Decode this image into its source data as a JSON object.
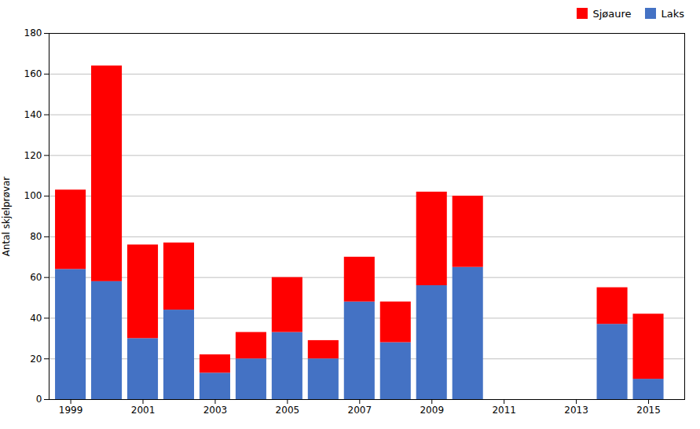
{
  "chart_data": {
    "type": "bar",
    "stacked": true,
    "x": [
      1999,
      2000,
      2001,
      2002,
      2003,
      2004,
      2005,
      2006,
      2007,
      2008,
      2009,
      2010,
      2014,
      2015
    ],
    "series": [
      {
        "name": "Laks",
        "color": "#4472C4",
        "values": [
          64,
          58,
          30,
          44,
          13,
          20,
          33,
          20,
          48,
          28,
          56,
          65,
          37,
          10
        ]
      },
      {
        "name": "Sjøaure",
        "color": "#FF0000",
        "values": [
          39,
          106,
          46,
          33,
          9,
          13,
          27,
          9,
          22,
          20,
          46,
          35,
          18,
          32
        ]
      }
    ],
    "ylabel": "Antal skjelprøvar",
    "xlim": [
      1998.4,
      2016.0
    ],
    "xticks": [
      1999,
      2001,
      2003,
      2005,
      2007,
      2009,
      2011,
      2013,
      2015
    ],
    "ylim": [
      0,
      180
    ],
    "yticks": [
      0,
      20,
      40,
      60,
      80,
      100,
      120,
      140,
      160,
      180
    ],
    "grid": true,
    "legend": "upper right"
  }
}
